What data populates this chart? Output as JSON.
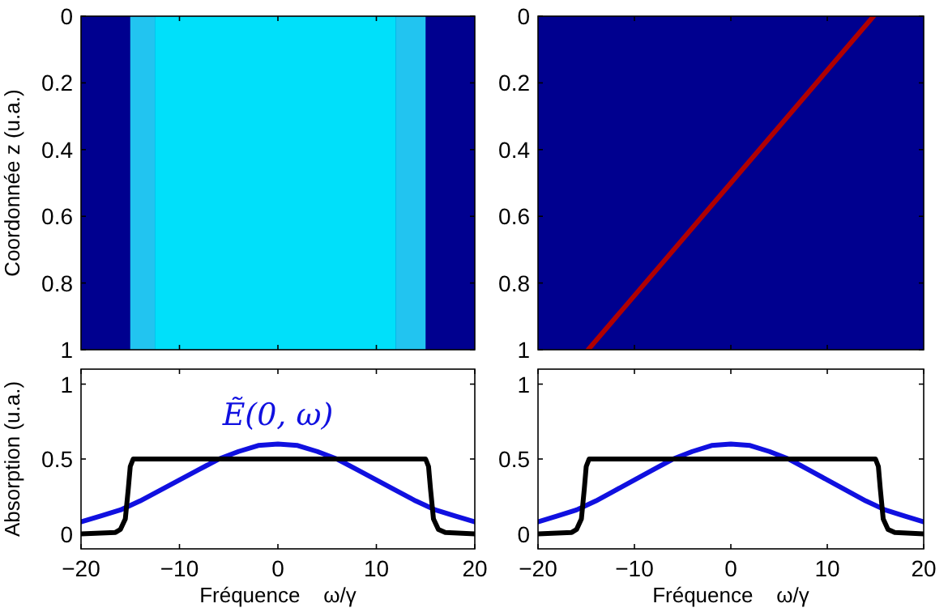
{
  "chart_data": [
    {
      "type": "line",
      "ylabel": "Coordonnée z (u.a.)",
      "xlim": [
        -20,
        20
      ],
      "xticks": [
        {
          "value": -10,
          "label": null
        },
        {
          "value": 0,
          "label": null
        },
        {
          "value": 10,
          "label": null
        }
      ],
      "ylim": [
        1,
        0
      ],
      "yticks": [
        0,
        0.2,
        0.4,
        0.6,
        0.8,
        1
      ],
      "tick_labels": "y",
      "bands": [
        {
          "axis": "x",
          "from": -20,
          "to": 20,
          "color": "#00008f"
        },
        {
          "axis": "x",
          "from": -15,
          "to": -12.5,
          "color": "#22c4f0"
        },
        {
          "axis": "x",
          "from": -12.5,
          "to": 12,
          "color": "#00e0fa"
        },
        {
          "axis": "x",
          "from": 12,
          "to": 15,
          "color": "#22c4f0"
        }
      ]
    },
    {
      "type": "line",
      "xlim": [
        -20,
        20
      ],
      "xticks": [
        {
          "value": -10,
          "label": null
        },
        {
          "value": 0,
          "label": null
        },
        {
          "value": 10,
          "label": null
        }
      ],
      "ylim": [
        1,
        0
      ],
      "yticks": [
        0,
        0.2,
        0.4,
        0.6,
        0.8,
        1
      ],
      "tick_labels": "y",
      "bands": [
        {
          "axis": "x",
          "from": -20,
          "to": 20,
          "color": "#00008f"
        }
      ],
      "series": [
        {
          "color": "#b00000",
          "x": [
            -14.8,
            14.8
          ],
          "values": [
            1,
            0
          ]
        }
      ]
    },
    {
      "type": "line",
      "ylabel": "Absorption (u.a.)",
      "xlabel": "Fréquence    ω/γ",
      "xlim": [
        -20,
        20
      ],
      "xticks": [
        -20,
        -10,
        0,
        10,
        20
      ],
      "ylim": [
        -0.1,
        1.1
      ],
      "yticks": [
        0,
        0.5,
        1
      ],
      "series": [
        {
          "name": "Ẽ(0, ω)",
          "color": "#1010e0",
          "x": [
            -20,
            -18,
            -16,
            -14,
            -12,
            -10,
            -8,
            -6,
            -4,
            -2,
            0,
            2,
            4,
            6,
            8,
            10,
            12,
            14,
            16,
            18,
            20
          ],
          "values": [
            0.08,
            0.12,
            0.16,
            0.22,
            0.29,
            0.36,
            0.43,
            0.5,
            0.55,
            0.59,
            0.6,
            0.59,
            0.55,
            0.5,
            0.43,
            0.36,
            0.29,
            0.22,
            0.16,
            0.12,
            0.08
          ]
        },
        {
          "color": "#000000",
          "x": [
            -20,
            -16.5,
            -16,
            -15.5,
            -15.2,
            -15,
            -14.7,
            15,
            15.3,
            15.5,
            15.8,
            16.3,
            17,
            20
          ],
          "values": [
            0,
            0.01,
            0.03,
            0.1,
            0.3,
            0.45,
            0.5,
            0.5,
            0.45,
            0.3,
            0.1,
            0.03,
            0.01,
            0
          ]
        }
      ]
    },
    {
      "type": "line",
      "xlabel": "Fréquence    ω/γ",
      "xlim": [
        -20,
        20
      ],
      "xticks": [
        -20,
        -10,
        0,
        10,
        20
      ],
      "ylim": [
        -0.1,
        1.1
      ],
      "yticks": [
        0,
        0.5,
        1
      ],
      "series": [
        {
          "color": "#1010e0",
          "x": [
            -20,
            -18,
            -16,
            -14,
            -12,
            -10,
            -8,
            -6,
            -4,
            -2,
            0,
            2,
            4,
            6,
            8,
            10,
            12,
            14,
            16,
            18,
            20
          ],
          "values": [
            0.08,
            0.12,
            0.16,
            0.22,
            0.29,
            0.36,
            0.43,
            0.5,
            0.55,
            0.59,
            0.6,
            0.59,
            0.55,
            0.5,
            0.43,
            0.36,
            0.29,
            0.22,
            0.16,
            0.12,
            0.08
          ]
        },
        {
          "color": "#000000",
          "x": [
            -20,
            -16.5,
            -16,
            -15.5,
            -15.2,
            -15,
            -14.7,
            15,
            15.3,
            15.5,
            15.8,
            16.3,
            17,
            20
          ],
          "values": [
            0,
            0.01,
            0.03,
            0.1,
            0.3,
            0.45,
            0.5,
            0.5,
            0.45,
            0.3,
            0.1,
            0.03,
            0.01,
            0
          ]
        }
      ]
    }
  ]
}
